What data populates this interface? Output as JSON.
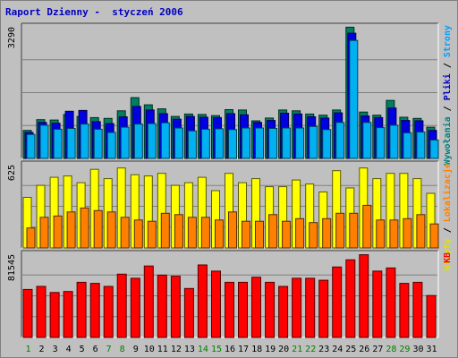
{
  "title": "Raport Dzienny -  styczeń 2006",
  "chart_data": [
    {
      "type": "bar",
      "panel": "top",
      "ymax_label": "3290",
      "ylim": [
        0,
        3290
      ],
      "right_label_parts": [
        {
          "text": "Wywołania",
          "color": "#008080"
        },
        {
          "text": " / ",
          "color": "#000000"
        },
        {
          "text": "Pliki",
          "color": "#0000c0"
        },
        {
          "text": " / ",
          "color": "#000000"
        },
        {
          "text": "Strony",
          "color": "#00a0ff"
        }
      ],
      "categories": [
        "1",
        "2",
        "3",
        "4",
        "5",
        "6",
        "7",
        "8",
        "9",
        "10",
        "11",
        "12",
        "13",
        "14",
        "15",
        "16",
        "17",
        "18",
        "19",
        "20",
        "21",
        "22",
        "23",
        "24",
        "25",
        "26",
        "27",
        "28",
        "29",
        "30",
        "31"
      ],
      "series": [
        {
          "name": "Wywołania",
          "color": "#008060",
          "values": [
            700,
            970,
            960,
            1100,
            1050,
            1020,
            1000,
            1190,
            1520,
            1340,
            1240,
            1050,
            1110,
            1100,
            1070,
            1220,
            1210,
            940,
            1010,
            1210,
            1190,
            1110,
            1080,
            1210,
            3280,
            1160,
            1080,
            1450,
            1030,
            1000,
            780
          ]
        },
        {
          "name": "Pliki",
          "color": "#0000e0",
          "values": [
            650,
            900,
            880,
            1180,
            1200,
            920,
            870,
            1040,
            1300,
            1210,
            1120,
            980,
            1050,
            1030,
            1020,
            1120,
            1090,
            900,
            950,
            1130,
            1110,
            1040,
            1010,
            1140,
            3130,
            1060,
            1020,
            1260,
            950,
            940,
            700
          ]
        },
        {
          "name": "Strony",
          "color": "#00b0f0",
          "values": [
            600,
            830,
            730,
            750,
            860,
            730,
            650,
            780,
            860,
            870,
            890,
            760,
            690,
            730,
            740,
            720,
            760,
            760,
            750,
            760,
            760,
            800,
            720,
            900,
            2950,
            900,
            770,
            830,
            640,
            660,
            460
          ]
        }
      ]
    },
    {
      "type": "bar",
      "panel": "middle",
      "ymax_label": "625",
      "ylim": [
        0,
        625
      ],
      "right_label_parts": [
        {
          "text": "Wizyty",
          "color": "#e0e000"
        },
        {
          "text": " / ",
          "color": "#000000"
        },
        {
          "text": "Lokalizacje",
          "color": "#ff8000"
        }
      ],
      "categories": [
        "1",
        "2",
        "3",
        "4",
        "5",
        "6",
        "7",
        "8",
        "9",
        "10",
        "11",
        "12",
        "13",
        "14",
        "15",
        "16",
        "17",
        "18",
        "19",
        "20",
        "21",
        "22",
        "23",
        "24",
        "25",
        "26",
        "27",
        "28",
        "29",
        "30",
        "31"
      ],
      "series": [
        {
          "name": "Wizyty",
          "color": "#ffff00",
          "values": [
            380,
            470,
            530,
            540,
            490,
            590,
            520,
            600,
            550,
            540,
            560,
            470,
            490,
            530,
            430,
            560,
            490,
            520,
            460,
            460,
            510,
            480,
            420,
            580,
            450,
            600,
            520,
            560,
            560,
            520,
            410
          ]
        },
        {
          "name": "Lokalizacje",
          "color": "#ff8000",
          "values": [
            150,
            230,
            240,
            270,
            300,
            280,
            270,
            230,
            210,
            200,
            260,
            250,
            230,
            230,
            210,
            270,
            200,
            200,
            250,
            200,
            220,
            190,
            220,
            260,
            260,
            320,
            210,
            210,
            220,
            250,
            180
          ]
        }
      ]
    },
    {
      "type": "bar",
      "panel": "bottom",
      "ymax_label": "81545",
      "ylim": [
        0,
        81545
      ],
      "right_label_parts": [
        {
          "text": "KB",
          "color": "#ff0000"
        }
      ],
      "categories": [
        "1",
        "2",
        "3",
        "4",
        "5",
        "6",
        "7",
        "8",
        "9",
        "10",
        "11",
        "12",
        "13",
        "14",
        "15",
        "16",
        "17",
        "18",
        "19",
        "20",
        "21",
        "22",
        "23",
        "24",
        "25",
        "26",
        "27",
        "28",
        "29",
        "30",
        "31"
      ],
      "series": [
        {
          "name": "KB",
          "color": "#ff0000",
          "values": [
            47000,
            50000,
            44000,
            45000,
            54000,
            53000,
            50000,
            62000,
            58000,
            70000,
            61000,
            60000,
            48000,
            71000,
            65000,
            54000,
            54000,
            59000,
            54000,
            50000,
            58000,
            58000,
            56000,
            69000,
            76000,
            81000,
            65000,
            68000,
            53000,
            54000,
            41000
          ]
        }
      ]
    }
  ],
  "x_labels": [
    {
      "text": "1",
      "color": "#008000"
    },
    {
      "text": "2",
      "color": "#000000"
    },
    {
      "text": "3",
      "color": "#000000"
    },
    {
      "text": "4",
      "color": "#000000"
    },
    {
      "text": "5",
      "color": "#000000"
    },
    {
      "text": "6",
      "color": "#000000"
    },
    {
      "text": "7",
      "color": "#008000"
    },
    {
      "text": "8",
      "color": "#008000"
    },
    {
      "text": "9",
      "color": "#000000"
    },
    {
      "text": "10",
      "color": "#000000"
    },
    {
      "text": "11",
      "color": "#000000"
    },
    {
      "text": "12",
      "color": "#000000"
    },
    {
      "text": "13",
      "color": "#000000"
    },
    {
      "text": "14",
      "color": "#008000"
    },
    {
      "text": "15",
      "color": "#008000"
    },
    {
      "text": "16",
      "color": "#000000"
    },
    {
      "text": "17",
      "color": "#000000"
    },
    {
      "text": "18",
      "color": "#000000"
    },
    {
      "text": "19",
      "color": "#000000"
    },
    {
      "text": "20",
      "color": "#000000"
    },
    {
      "text": "21",
      "color": "#008000"
    },
    {
      "text": "22",
      "color": "#008000"
    },
    {
      "text": "23",
      "color": "#000000"
    },
    {
      "text": "24",
      "color": "#000000"
    },
    {
      "text": "25",
      "color": "#000000"
    },
    {
      "text": "26",
      "color": "#000000"
    },
    {
      "text": "27",
      "color": "#000000"
    },
    {
      "text": "28",
      "color": "#008000"
    },
    {
      "text": "29",
      "color": "#008000"
    },
    {
      "text": "30",
      "color": "#000000"
    },
    {
      "text": "31",
      "color": "#000000"
    }
  ]
}
